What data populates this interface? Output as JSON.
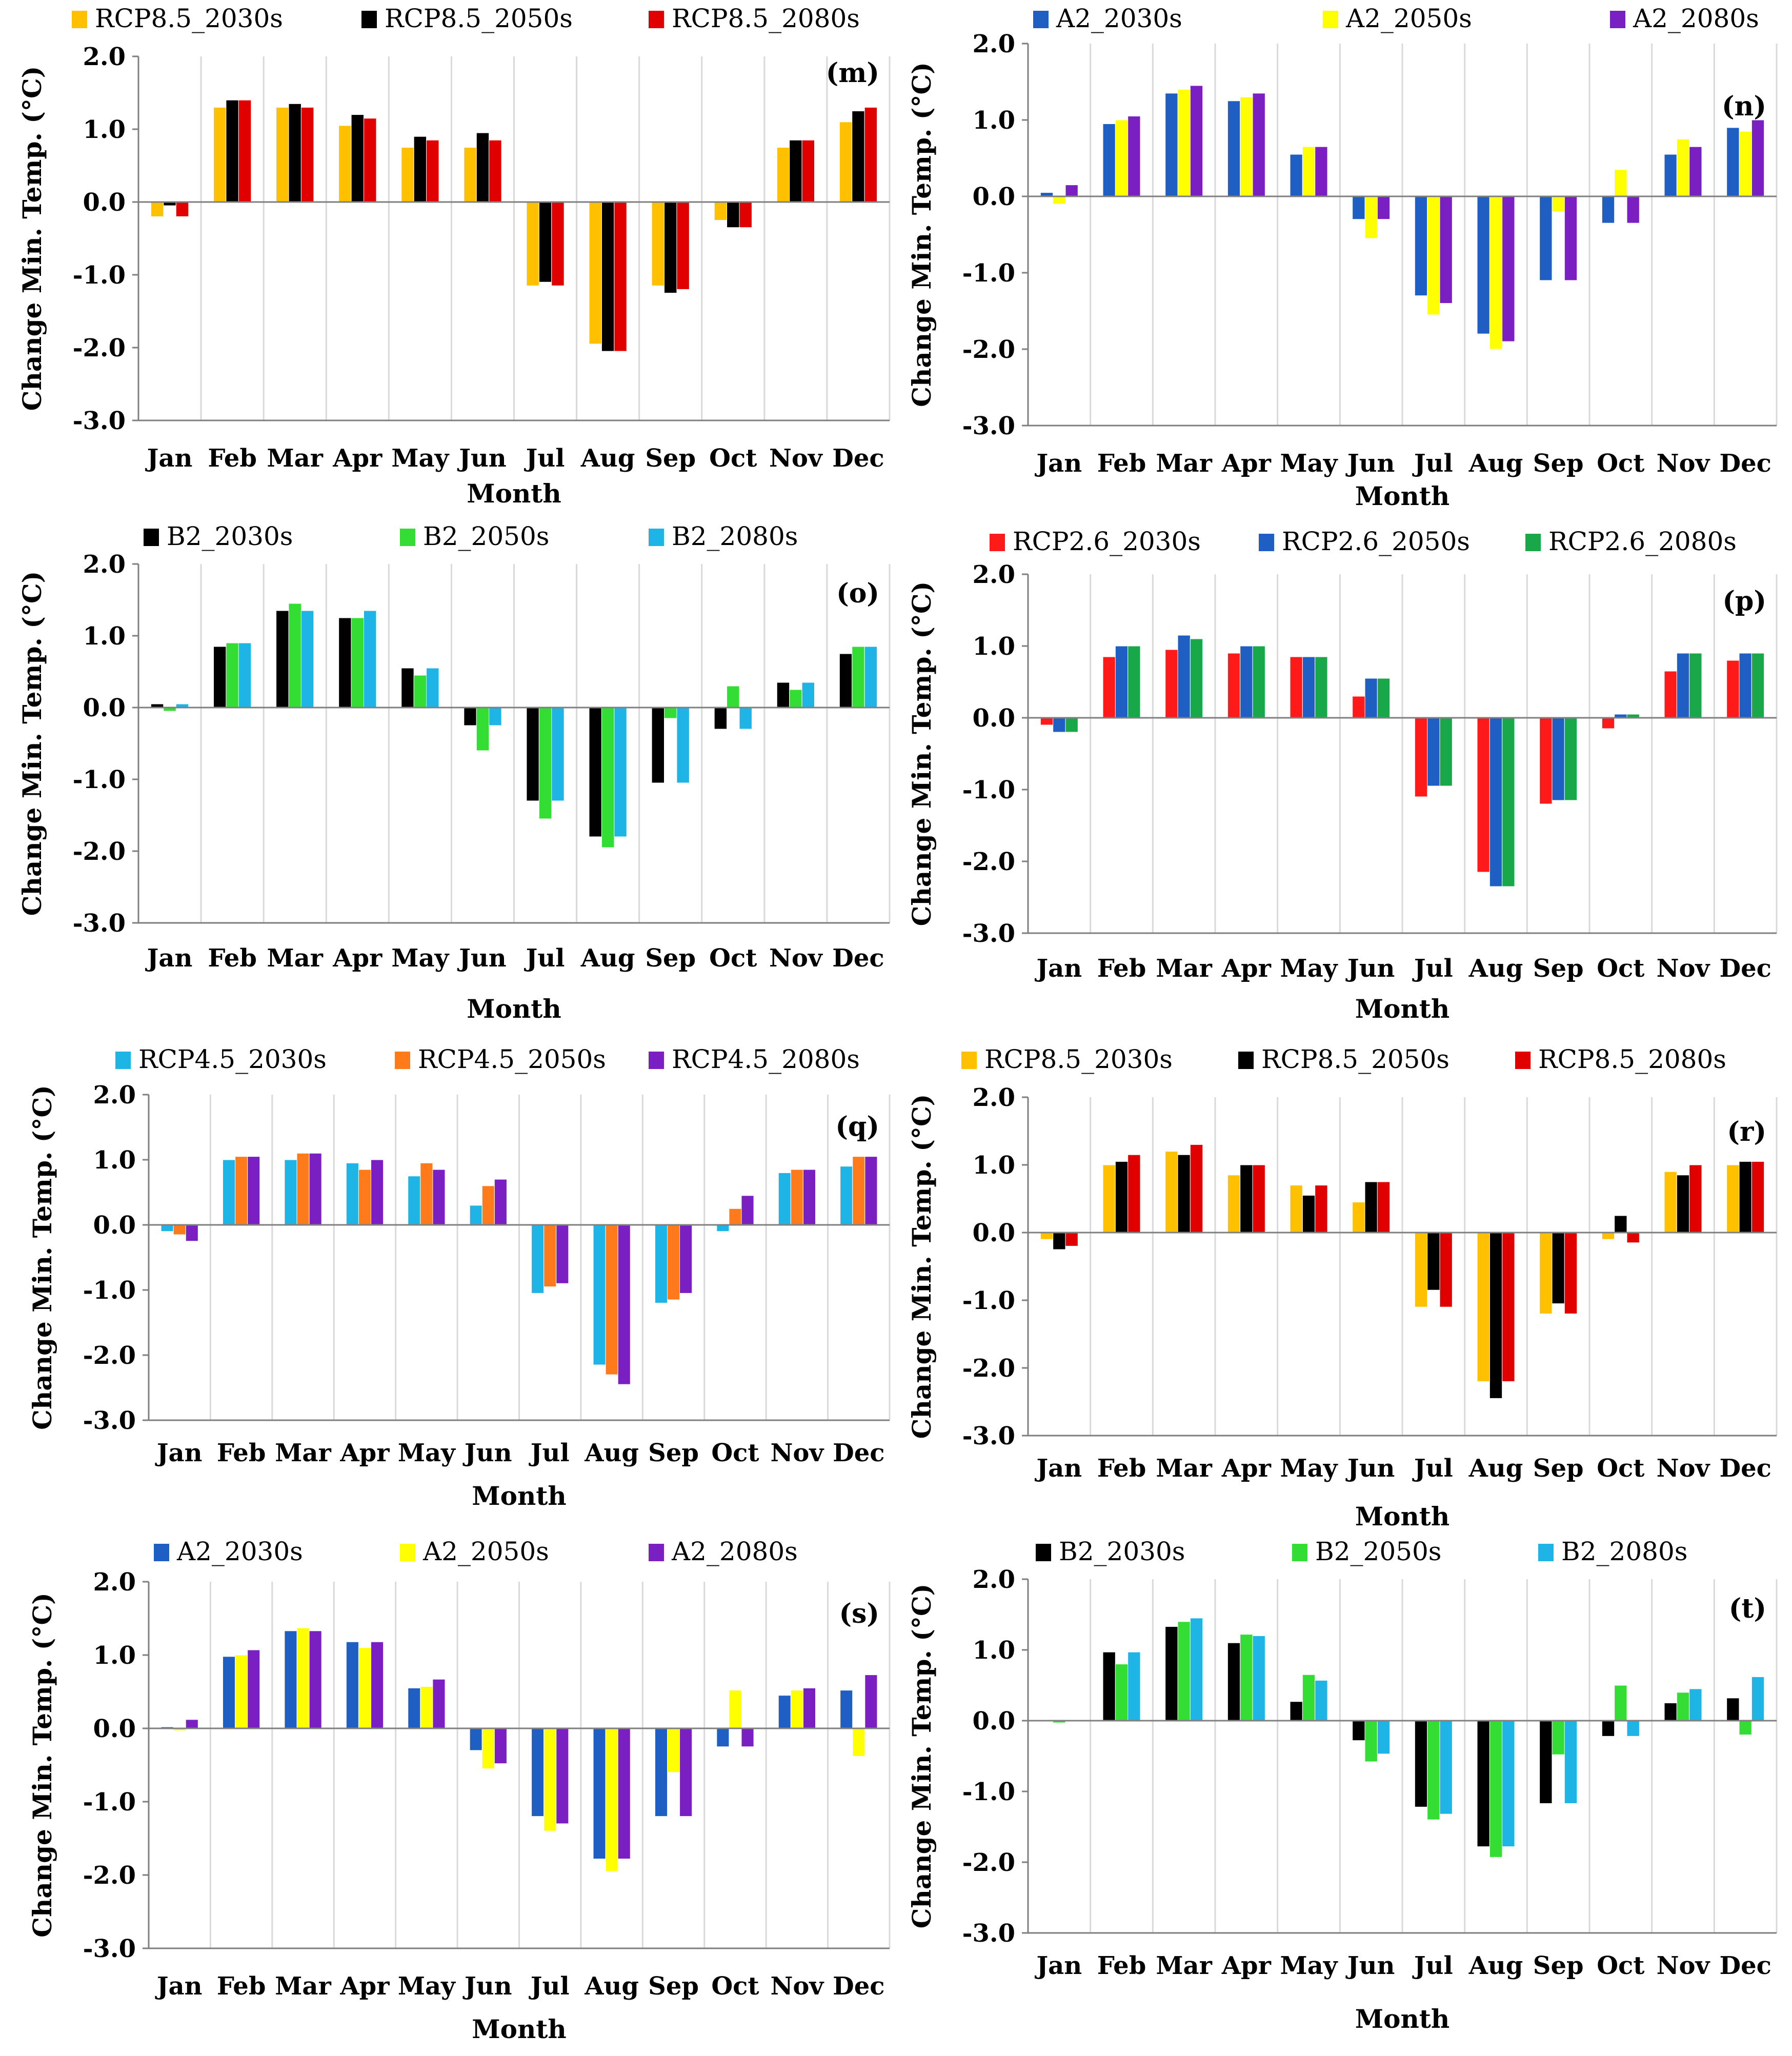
{
  "chart_data": [
    {
      "type": "bar",
      "panel": "(m)",
      "categories": [
        "Jan",
        "Feb",
        "Mar",
        "Apr",
        "May",
        "Jun",
        "Jul",
        "Aug",
        "Sep",
        "Oct",
        "Nov",
        "Dec"
      ],
      "ylabel": "Change Min. Temp. (°C)",
      "xlabel": "Month",
      "ylim": [
        -3.0,
        2.0
      ],
      "yticks": [
        "2.0",
        "1.0",
        "0.0",
        "-1.0",
        "-2.0",
        "-3.0"
      ],
      "grid": true,
      "legend_position": "top",
      "series": [
        {
          "name": "RCP8.5_2030s",
          "color": "#FFC000",
          "values": [
            -0.2,
            1.3,
            1.3,
            1.05,
            0.75,
            0.75,
            -1.15,
            -1.95,
            -1.15,
            -0.25,
            0.75,
            1.1
          ]
        },
        {
          "name": "RCP8.5_2050s",
          "color": "#000000",
          "values": [
            -0.05,
            1.4,
            1.35,
            1.2,
            0.9,
            0.95,
            -1.1,
            -2.05,
            -1.25,
            -0.35,
            0.85,
            1.25
          ]
        },
        {
          "name": "RCP8.5_2080s",
          "color": "#E00000",
          "values": [
            -0.2,
            1.4,
            1.3,
            1.15,
            0.85,
            0.85,
            -1.15,
            -2.05,
            -1.2,
            -0.35,
            0.85,
            1.3
          ]
        }
      ]
    },
    {
      "type": "bar",
      "panel": "(n)",
      "categories": [
        "Jan",
        "Feb",
        "Mar",
        "Apr",
        "May",
        "Jun",
        "Jul",
        "Aug",
        "Sep",
        "Oct",
        "Nov",
        "Dec"
      ],
      "ylabel": "Change Min. Temp. (°C)",
      "xlabel": "Month",
      "ylim": [
        -3.0,
        2.0
      ],
      "yticks": [
        "2.0",
        "1.0",
        "0.0",
        "-1.0",
        "-2.0",
        "-3.0"
      ],
      "grid": true,
      "legend_position": "top",
      "series": [
        {
          "name": "A2_2030s",
          "color": "#1F5FC4",
          "values": [
            0.05,
            0.95,
            1.35,
            1.25,
            0.55,
            -0.3,
            -1.3,
            -1.8,
            -1.1,
            -0.35,
            0.55,
            0.9
          ]
        },
        {
          "name": "A2_2050s",
          "color": "#FFFF00",
          "values": [
            -0.1,
            1.0,
            1.4,
            1.3,
            0.65,
            -0.55,
            -1.55,
            -2.0,
            -0.2,
            0.35,
            0.75,
            0.85
          ]
        },
        {
          "name": "A2_2080s",
          "color": "#7A1FC2",
          "values": [
            0.15,
            1.05,
            1.45,
            1.35,
            0.65,
            -0.3,
            -1.4,
            -1.9,
            -1.1,
            -0.35,
            0.65,
            1.0
          ]
        }
      ]
    },
    {
      "type": "bar",
      "panel": "(o)",
      "categories": [
        "Jan",
        "Feb",
        "Mar",
        "Apr",
        "May",
        "Jun",
        "Jul",
        "Aug",
        "Sep",
        "Oct",
        "Nov",
        "Dec"
      ],
      "ylabel": "Change Min. Temp. (°C)",
      "xlabel": "Month",
      "ylim": [
        -3.0,
        2.0
      ],
      "yticks": [
        "2.0",
        "1.0",
        "0.0",
        "-1.0",
        "-2.0",
        "-3.0"
      ],
      "grid": true,
      "legend_position": "top",
      "series": [
        {
          "name": "B2_2030s",
          "color": "#000000",
          "values": [
            0.05,
            0.85,
            1.35,
            1.25,
            0.55,
            -0.25,
            -1.3,
            -1.8,
            -1.05,
            -0.3,
            0.35,
            0.75
          ]
        },
        {
          "name": "B2_2050s",
          "color": "#33DD33",
          "values": [
            -0.05,
            0.9,
            1.45,
            1.25,
            0.45,
            -0.6,
            -1.55,
            -1.95,
            -0.15,
            0.3,
            0.25,
            0.85
          ]
        },
        {
          "name": "B2_2080s",
          "color": "#1EB4E6",
          "values": [
            0.05,
            0.9,
            1.35,
            1.35,
            0.55,
            -0.25,
            -1.3,
            -1.8,
            -1.05,
            -0.3,
            0.35,
            0.85
          ]
        }
      ]
    },
    {
      "type": "bar",
      "panel": "(p)",
      "categories": [
        "Jan",
        "Feb",
        "Mar",
        "Apr",
        "May",
        "Jun",
        "Jul",
        "Aug",
        "Sep",
        "Oct",
        "Nov",
        "Dec"
      ],
      "ylabel": "Change Min. Temp. (°C)",
      "xlabel": "Month",
      "ylim": [
        -3.0,
        2.0
      ],
      "yticks": [
        "2.0",
        "1.0",
        "0.0",
        "-1.0",
        "-2.0",
        "-3.0"
      ],
      "grid": true,
      "legend_position": "top",
      "series": [
        {
          "name": "RCP2.6_2030s",
          "color": "#FF1A1A",
          "values": [
            -0.1,
            0.85,
            0.95,
            0.9,
            0.85,
            0.3,
            -1.1,
            -2.15,
            -1.2,
            -0.15,
            0.65,
            0.8
          ]
        },
        {
          "name": "RCP2.6_2050s",
          "color": "#1F5FC4",
          "values": [
            -0.2,
            1.0,
            1.15,
            1.0,
            0.85,
            0.55,
            -0.95,
            -2.35,
            -1.15,
            0.05,
            0.9,
            0.9
          ]
        },
        {
          "name": "RCP2.6_2080s",
          "color": "#18A84A",
          "values": [
            -0.2,
            1.0,
            1.1,
            1.0,
            0.85,
            0.55,
            -0.95,
            -2.35,
            -1.15,
            0.05,
            0.9,
            0.9
          ]
        }
      ]
    },
    {
      "type": "bar",
      "panel": "(q)",
      "categories": [
        "Jan",
        "Feb",
        "Mar",
        "Apr",
        "May",
        "Jun",
        "Jul",
        "Aug",
        "Sep",
        "Oct",
        "Nov",
        "Dec"
      ],
      "ylabel": "Change Min. Temp. (°C)",
      "xlabel": "Month",
      "ylim": [
        -3.0,
        2.0
      ],
      "yticks": [
        "2.0",
        "1.0",
        "0.0",
        "-1.0",
        "-2.0",
        "-3.0"
      ],
      "grid": true,
      "legend_position": "top",
      "series": [
        {
          "name": "RCP4.5_2030s",
          "color": "#1EB4E6",
          "values": [
            -0.1,
            1.0,
            1.0,
            0.95,
            0.75,
            0.3,
            -1.05,
            -2.15,
            -1.2,
            -0.1,
            0.8,
            0.9
          ]
        },
        {
          "name": "RCP4.5_2050s",
          "color": "#FF7A1A",
          "values": [
            -0.15,
            1.05,
            1.1,
            0.85,
            0.95,
            0.6,
            -0.95,
            -2.3,
            -1.15,
            0.25,
            0.85,
            1.05
          ]
        },
        {
          "name": "RCP4.5_2080s",
          "color": "#7A1FC2",
          "values": [
            -0.25,
            1.05,
            1.1,
            1.0,
            0.85,
            0.7,
            -0.9,
            -2.45,
            -1.05,
            0.45,
            0.85,
            1.05
          ]
        }
      ]
    },
    {
      "type": "bar",
      "panel": "(r)",
      "categories": [
        "Jan",
        "Feb",
        "Mar",
        "Apr",
        "May",
        "Jun",
        "Jul",
        "Aug",
        "Sep",
        "Oct",
        "Nov",
        "Dec"
      ],
      "ylabel": "Change Min. Temp. (°C)",
      "xlabel": "Month",
      "ylim": [
        -3.0,
        2.0
      ],
      "yticks": [
        "2.0",
        "1.0",
        "0.0",
        "-1.0",
        "-2.0",
        "-3.0"
      ],
      "grid": true,
      "legend_position": "top",
      "series": [
        {
          "name": "RCP8.5_2030s",
          "color": "#FFC000",
          "values": [
            -0.1,
            1.0,
            1.2,
            0.85,
            0.7,
            0.45,
            -1.1,
            -2.2,
            -1.2,
            -0.1,
            0.9,
            1.0
          ]
        },
        {
          "name": "RCP8.5_2050s",
          "color": "#000000",
          "values": [
            -0.25,
            1.05,
            1.15,
            1.0,
            0.55,
            0.75,
            -0.85,
            -2.45,
            -1.05,
            0.25,
            0.85,
            1.05
          ]
        },
        {
          "name": "RCP8.5_2080s",
          "color": "#E00000",
          "values": [
            -0.2,
            1.15,
            1.3,
            1.0,
            0.7,
            0.75,
            -1.1,
            -2.2,
            -1.2,
            -0.15,
            1.0,
            1.05
          ]
        }
      ]
    },
    {
      "type": "bar",
      "panel": "(s)",
      "categories": [
        "Jan",
        "Feb",
        "Mar",
        "Apr",
        "May",
        "Jun",
        "Jul",
        "Aug",
        "Sep",
        "Oct",
        "Nov",
        "Dec"
      ],
      "ylabel": "Change Min. Temp. (°C)",
      "xlabel": "Month",
      "ylim": [
        -3.0,
        2.0
      ],
      "yticks": [
        "2.0",
        "1.0",
        "0.0",
        "-1.0",
        "-2.0",
        "-3.0"
      ],
      "grid": true,
      "legend_position": "top",
      "series": [
        {
          "name": "A2_2030s",
          "color": "#1F5FC4",
          "values": [
            0.02,
            0.98,
            1.33,
            1.18,
            0.55,
            -0.3,
            -1.2,
            -1.78,
            -1.2,
            -0.25,
            0.45,
            0.52
          ]
        },
        {
          "name": "A2_2050s",
          "color": "#FFFF00",
          "values": [
            -0.03,
            1.0,
            1.37,
            1.1,
            0.57,
            -0.55,
            -1.4,
            -1.95,
            -0.6,
            0.52,
            0.52,
            -0.38
          ]
        },
        {
          "name": "A2_2080s",
          "color": "#7A1FC2",
          "values": [
            0.12,
            1.07,
            1.33,
            1.18,
            0.67,
            -0.48,
            -1.3,
            -1.78,
            -1.2,
            -0.25,
            0.55,
            0.73
          ]
        }
      ]
    },
    {
      "type": "bar",
      "panel": "(t)",
      "categories": [
        "Jan",
        "Feb",
        "Mar",
        "Apr",
        "May",
        "Jun",
        "Jul",
        "Aug",
        "Sep",
        "Oct",
        "Nov",
        "Dec"
      ],
      "ylabel": "Change Min. Temp. (°C)",
      "xlabel": "Month",
      "ylim": [
        -3.0,
        2.0
      ],
      "yticks": [
        "2.0",
        "1.0",
        "0.0",
        "-1.0",
        "-2.0",
        "-3.0"
      ],
      "grid": true,
      "legend_position": "top",
      "series": [
        {
          "name": "B2_2030s",
          "color": "#000000",
          "values": [
            0.0,
            0.97,
            1.33,
            1.1,
            0.27,
            -0.28,
            -1.22,
            -1.78,
            -1.17,
            -0.22,
            0.25,
            0.32
          ]
        },
        {
          "name": "B2_2050s",
          "color": "#33DD33",
          "values": [
            -0.03,
            0.8,
            1.4,
            1.22,
            0.65,
            -0.58,
            -1.4,
            -1.93,
            -0.48,
            0.5,
            0.4,
            -0.2
          ]
        },
        {
          "name": "B2_2080s",
          "color": "#1EB4E6",
          "values": [
            0.0,
            0.97,
            1.45,
            1.2,
            0.57,
            -0.47,
            -1.32,
            -1.78,
            -1.17,
            -0.22,
            0.45,
            0.62
          ]
        }
      ]
    }
  ]
}
